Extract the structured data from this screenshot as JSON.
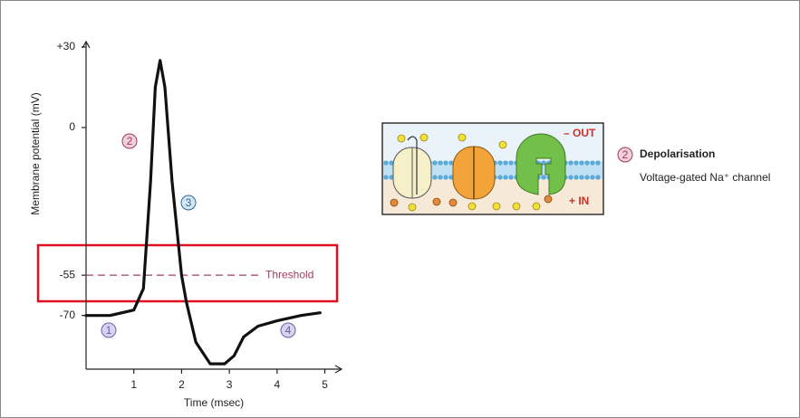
{
  "chart_data": {
    "type": "line",
    "x_label": "Time (msec)",
    "y_label": "Membrane potential (mV)",
    "x": [
      0,
      0.5,
      1,
      1.2,
      1.35,
      1.45,
      1.55,
      1.65,
      1.8,
      2,
      2.1,
      2.3,
      2.6,
      2.9,
      3.1,
      3.3,
      3.6,
      4,
      4.5,
      4.9
    ],
    "series": [
      {
        "color": "#111111",
        "values": [
          -70,
          -70,
          -68,
          -60,
          -20,
          15,
          25,
          15,
          -20,
          -55,
          -65,
          -80,
          -88,
          -88,
          -85,
          -78,
          -74,
          -72,
          -70,
          -69
        ]
      }
    ],
    "xlim": [
      0,
      5.35
    ],
    "xticks": [
      1,
      2,
      3,
      4,
      5
    ],
    "ylim": [
      -90,
      32
    ],
    "yticks": [
      {
        "value": 30,
        "label": "+30"
      },
      0,
      -55,
      -70
    ],
    "threshold": {
      "value": -55,
      "label": "Threshold"
    },
    "markers": [
      "1",
      "2",
      "3",
      "4"
    ],
    "diagram": {
      "out_label": "– OUT",
      "in_label": "+ IN",
      "step": "2",
      "title": "Depolarisation",
      "caption": "Voltage-gated Na⁺ channel"
    }
  }
}
